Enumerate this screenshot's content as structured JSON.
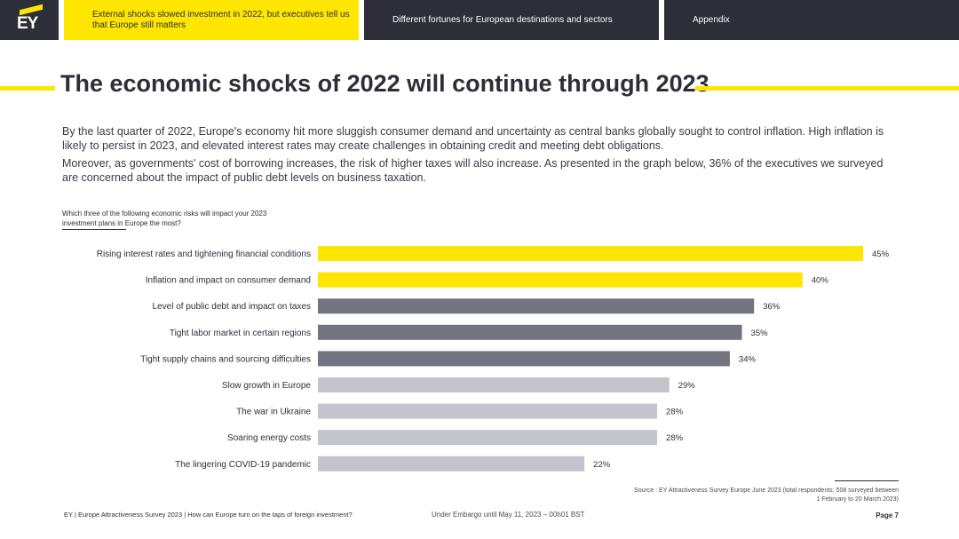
{
  "nav": {
    "logo": "EY",
    "tabs": [
      {
        "label": "External shocks slowed investment in 2022, but executives tell us that Europe still matters"
      },
      {
        "label": "Different fortunes for European destinations and sectors"
      },
      {
        "label": "Appendix"
      }
    ]
  },
  "title": "The economic shocks of 2022 will continue through 2023",
  "paragraphs": [
    "By the last quarter of 2022, Europe's economy hit more sluggish consumer demand and uncertainty as central banks globally sought to control inflation. High inflation is likely to persist in 2023, and elevated interest rates may create challenges in obtaining credit and meeting debt obligations.",
    "Moreover, as governments' cost of borrowing increases, the risk of higher taxes will also increase. As presented in the graph below, 36% of the executives we surveyed are concerned about the impact of public debt levels on business taxation."
  ],
  "chart_question": "Which three of the following economic risks will impact your 2023 investment plans in Europe the most?",
  "chart_data": {
    "type": "bar",
    "orientation": "horizontal",
    "categories": [
      "Rising interest rates and tightening financial conditions",
      "Inflation and impact on consumer demand",
      "Level of public debt and impact on taxes",
      "Tight labor market in certain regions",
      "Tight supply chains and sourcing difficulties",
      "Slow growth in Europe",
      "The war in Ukraine",
      "Soaring energy costs",
      "The lingering COVID-19 pandemic"
    ],
    "values": [
      45,
      40,
      36,
      35,
      34,
      29,
      28,
      28,
      22
    ],
    "labels": [
      "45%",
      "40%",
      "36%",
      "35%",
      "34%",
      "29%",
      "28%",
      "28%",
      "22%"
    ],
    "colors": [
      "#ffe600",
      "#ffe600",
      "#747480",
      "#747480",
      "#747480",
      "#c4c4cd",
      "#c4c4cd",
      "#c4c4cd",
      "#c4c4cd"
    ],
    "xlim": [
      0,
      45
    ],
    "grid": false,
    "legend": "none"
  },
  "source": "Source : EY Attractiveness Survey Europe June 2023 (total respondents: 508 surveyed between 1 February to 20 March 2023)",
  "footer": {
    "left": "EY | Europe Attractiveness Survey 2023 | How can Europe turn on the taps of foreign investment?",
    "center": "Under Embargo until May 11, 2023 – 00h01 BST",
    "page": "Page 7"
  }
}
